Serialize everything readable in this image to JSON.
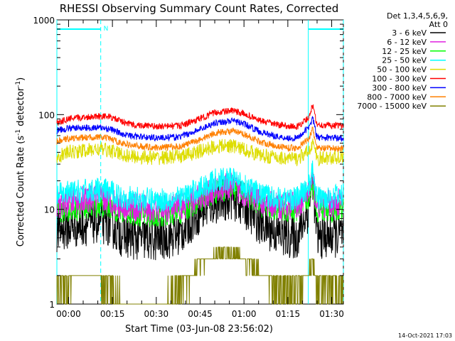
{
  "chart_data": {
    "type": "line",
    "title": "RHESSI Observing Summary Count Rates, Corrected",
    "xlabel": "Start Time (03-Jun-08 23:56:02)",
    "ylabel_main": "Corrected Count Rate (s",
    "ylabel_sup1": "-1",
    "ylabel_mid": " detector",
    "ylabel_sup2": "-1",
    "ylabel_end": ")",
    "yscale": "log",
    "ylim": [
      1,
      1000
    ],
    "xlim": [
      -4,
      94
    ],
    "x_unit": "minutes after 00:00 tick",
    "ytick_labels": [
      "1",
      "10",
      "100",
      "1000"
    ],
    "xtick_labels": [
      "00:00",
      "00:15",
      "00:30",
      "00:45",
      "01:00",
      "01:15",
      "01:30"
    ],
    "legend_header": [
      "Det 1,3,4,5,6,9,",
      "Att 0"
    ],
    "footer": "14-Oct-2021 17:03",
    "markers": {
      "night_start": -4,
      "night_end": 11,
      "night_label": "N",
      "saa_start": 82,
      "saa_end": 94
    },
    "series": [
      {
        "name": "3 - 6 keV",
        "color": "#000000",
        "noise": 0.55,
        "points": [
          [
            -4,
            6
          ],
          [
            0,
            6.5
          ],
          [
            10,
            7.5
          ],
          [
            14,
            7
          ],
          [
            18,
            5.5
          ],
          [
            22,
            5
          ],
          [
            30,
            4.8
          ],
          [
            38,
            5.5
          ],
          [
            44,
            9
          ],
          [
            50,
            12
          ],
          [
            56,
            13.5
          ],
          [
            60,
            11
          ],
          [
            66,
            7
          ],
          [
            72,
            5.5
          ],
          [
            78,
            5
          ],
          [
            82,
            10
          ],
          [
            83.5,
            22
          ],
          [
            85,
            5
          ],
          [
            94,
            5.5
          ]
        ]
      },
      {
        "name": "6 - 12 keV",
        "color": "#e020e0",
        "noise": 0.35,
        "points": [
          [
            -4,
            11
          ],
          [
            0,
            12
          ],
          [
            10,
            13
          ],
          [
            14,
            12.5
          ],
          [
            18,
            11
          ],
          [
            22,
            10.5
          ],
          [
            30,
            10
          ],
          [
            38,
            10.5
          ],
          [
            44,
            13
          ],
          [
            50,
            16
          ],
          [
            56,
            17.5
          ],
          [
            60,
            15
          ],
          [
            66,
            12
          ],
          [
            72,
            11
          ],
          [
            78,
            11
          ],
          [
            82,
            15
          ],
          [
            83.5,
            21
          ],
          [
            85,
            11
          ],
          [
            94,
            12
          ]
        ]
      },
      {
        "name": "12 - 25 keV",
        "color": "#00ff00",
        "noise": 0.3,
        "points": [
          [
            -4,
            9
          ],
          [
            0,
            10
          ],
          [
            10,
            11
          ],
          [
            14,
            10.5
          ],
          [
            18,
            9.5
          ],
          [
            22,
            9
          ],
          [
            30,
            8.5
          ],
          [
            38,
            9
          ],
          [
            44,
            12
          ],
          [
            50,
            15
          ],
          [
            56,
            17
          ],
          [
            60,
            14.5
          ],
          [
            66,
            11
          ],
          [
            72,
            10
          ],
          [
            78,
            9.5
          ],
          [
            82,
            13
          ],
          [
            83.5,
            20
          ],
          [
            85,
            9.5
          ],
          [
            94,
            10
          ]
        ]
      },
      {
        "name": "25 - 50 keV",
        "color": "#00ffff",
        "noise": 0.3,
        "points": [
          [
            -4,
            14
          ],
          [
            0,
            15
          ],
          [
            10,
            16
          ],
          [
            14,
            15.5
          ],
          [
            18,
            13.5
          ],
          [
            22,
            13
          ],
          [
            30,
            12.5
          ],
          [
            38,
            13
          ],
          [
            44,
            16
          ],
          [
            50,
            20
          ],
          [
            56,
            21
          ],
          [
            60,
            18
          ],
          [
            66,
            14
          ],
          [
            72,
            13
          ],
          [
            78,
            13
          ],
          [
            82,
            17
          ],
          [
            83.5,
            25
          ],
          [
            85,
            13
          ],
          [
            94,
            14
          ]
        ]
      },
      {
        "name": "50 - 100 keV",
        "color": "#dddd00",
        "noise": 0.18,
        "points": [
          [
            -4,
            36
          ],
          [
            0,
            40
          ],
          [
            10,
            43
          ],
          [
            14,
            42
          ],
          [
            18,
            38
          ],
          [
            22,
            36
          ],
          [
            30,
            35
          ],
          [
            38,
            36
          ],
          [
            44,
            40
          ],
          [
            50,
            46
          ],
          [
            56,
            47
          ],
          [
            60,
            43
          ],
          [
            66,
            37
          ],
          [
            72,
            35
          ],
          [
            78,
            34
          ],
          [
            82,
            40
          ],
          [
            83.5,
            52
          ],
          [
            85,
            34
          ],
          [
            94,
            36
          ]
        ]
      },
      {
        "name": "100 - 300 keV",
        "color": "#ff0000",
        "noise": 0.08,
        "points": [
          [
            -4,
            82
          ],
          [
            0,
            90
          ],
          [
            10,
            97
          ],
          [
            14,
            95
          ],
          [
            18,
            85
          ],
          [
            22,
            78
          ],
          [
            30,
            75
          ],
          [
            38,
            76
          ],
          [
            44,
            88
          ],
          [
            50,
            105
          ],
          [
            56,
            110
          ],
          [
            60,
            102
          ],
          [
            66,
            85
          ],
          [
            72,
            78
          ],
          [
            78,
            74
          ],
          [
            82,
            92
          ],
          [
            83.5,
            125
          ],
          [
            85,
            78
          ],
          [
            94,
            76
          ]
        ]
      },
      {
        "name": "300 - 800 keV",
        "color": "#0000ff",
        "noise": 0.08,
        "points": [
          [
            -4,
            68
          ],
          [
            0,
            72
          ],
          [
            10,
            73
          ],
          [
            14,
            71
          ],
          [
            18,
            63
          ],
          [
            22,
            59
          ],
          [
            30,
            57
          ],
          [
            38,
            58
          ],
          [
            44,
            68
          ],
          [
            50,
            82
          ],
          [
            56,
            86
          ],
          [
            60,
            80
          ],
          [
            66,
            65
          ],
          [
            72,
            58
          ],
          [
            78,
            56
          ],
          [
            82,
            72
          ],
          [
            83.5,
            92
          ],
          [
            85,
            57
          ],
          [
            94,
            57
          ]
        ]
      },
      {
        "name": "800 - 7000 keV",
        "color": "#ff8000",
        "noise": 0.08,
        "points": [
          [
            -4,
            52
          ],
          [
            0,
            56
          ],
          [
            10,
            58
          ],
          [
            14,
            56
          ],
          [
            18,
            50
          ],
          [
            22,
            47
          ],
          [
            30,
            45
          ],
          [
            38,
            46
          ],
          [
            44,
            53
          ],
          [
            50,
            64
          ],
          [
            56,
            67
          ],
          [
            60,
            62
          ],
          [
            66,
            51
          ],
          [
            72,
            46
          ],
          [
            78,
            44
          ],
          [
            82,
            55
          ],
          [
            83.5,
            70
          ],
          [
            85,
            44
          ],
          [
            94,
            44
          ]
        ]
      },
      {
        "name": "7000 - 15000 keV",
        "color": "#808000",
        "noise": 0,
        "points": [
          [
            -4,
            1.5
          ],
          [
            3,
            2
          ],
          [
            10,
            2
          ],
          [
            14,
            1.5
          ],
          [
            20,
            1
          ],
          [
            26,
            1
          ],
          [
            32,
            1
          ],
          [
            38,
            1.5
          ],
          [
            44,
            2.5
          ],
          [
            48,
            3
          ],
          [
            52,
            3.5
          ],
          [
            56,
            3.5
          ],
          [
            60,
            3
          ],
          [
            64,
            2.5
          ],
          [
            70,
            1.5
          ],
          [
            76,
            1.5
          ],
          [
            82,
            2
          ],
          [
            83.5,
            3
          ],
          [
            85,
            1.5
          ],
          [
            94,
            1.5
          ]
        ]
      }
    ]
  }
}
